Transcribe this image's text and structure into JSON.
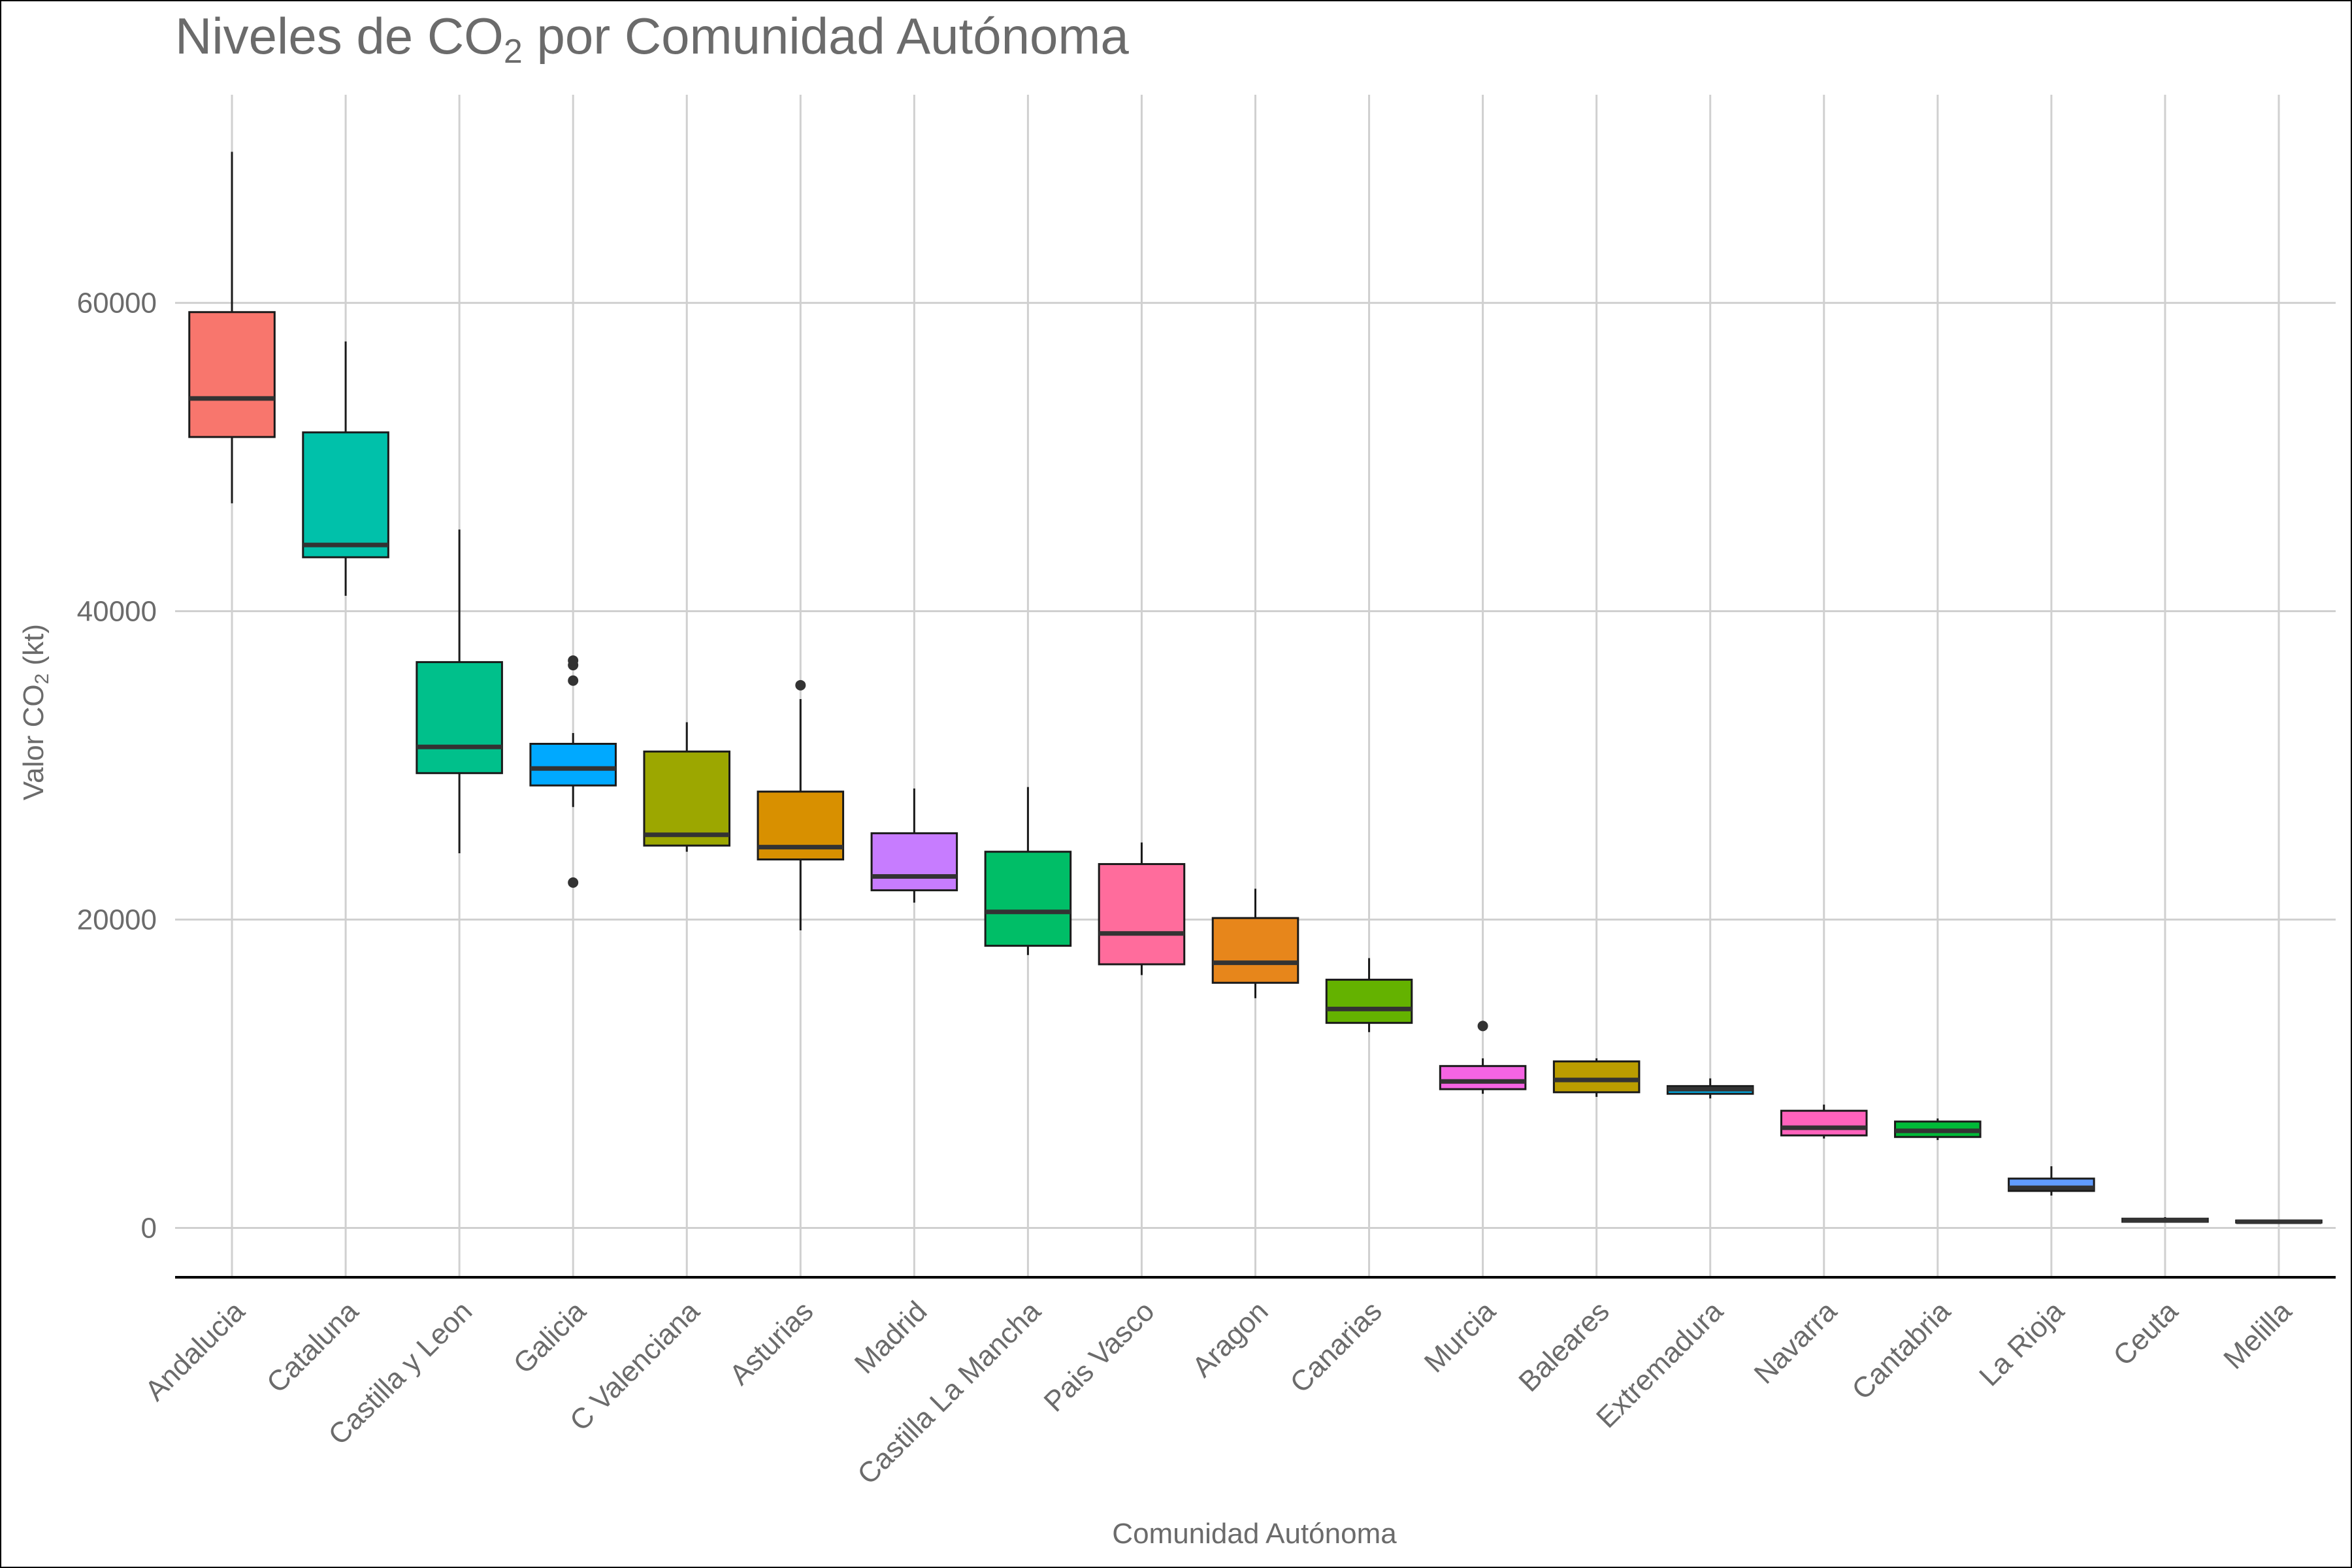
{
  "chart_data": {
    "type": "boxplot",
    "title": {
      "pre": "Niveles de  CO",
      "sub": "2",
      "post": " por Comunidad Autónoma"
    },
    "xlabel": "Comunidad Autónoma",
    "ylabel": {
      "pre": "Valor  CO",
      "sub": "2",
      "post": " (kt)"
    },
    "ylim": [
      -3200,
      73500
    ],
    "yticks": [
      0,
      20000,
      40000,
      60000
    ],
    "ytick_labels": [
      "0",
      "20000",
      "40000",
      "60000"
    ],
    "grid": true,
    "legend": "none",
    "categories": [
      {
        "name": "Andalucia",
        "color": "#F8766D",
        "min": 47000,
        "q1": 51300,
        "median": 53800,
        "q3": 59400,
        "max": 69800,
        "outliers": []
      },
      {
        "name": "Cataluna",
        "color": "#00C1AA",
        "min": 41000,
        "q1": 43500,
        "median": 44300,
        "q3": 51600,
        "max": 57500,
        "outliers": []
      },
      {
        "name": "Castilla y Leon",
        "color": "#00C08B",
        "min": 24300,
        "q1": 29500,
        "median": 31200,
        "q3": 36700,
        "max": 45300,
        "outliers": []
      },
      {
        "name": "Galicia",
        "color": "#00A9FF",
        "min": 27300,
        "q1": 28700,
        "median": 29800,
        "q3": 31400,
        "max": 32100,
        "outliers": [
          22400,
          35500,
          36500,
          36800
        ]
      },
      {
        "name": "C Valenciana",
        "color": "#9CA700",
        "min": 24400,
        "q1": 24800,
        "median": 25500,
        "q3": 30900,
        "max": 32800,
        "outliers": []
      },
      {
        "name": "Asturias",
        "color": "#D89000",
        "min": 19300,
        "q1": 23900,
        "median": 24700,
        "q3": 28300,
        "max": 34300,
        "outliers": [
          35200
        ]
      },
      {
        "name": "Madrid",
        "color": "#C77CFF",
        "min": 21100,
        "q1": 21900,
        "median": 22800,
        "q3": 25600,
        "max": 28500,
        "outliers": []
      },
      {
        "name": "Castilla La Mancha",
        "color": "#00BE67",
        "min": 17700,
        "q1": 18300,
        "median": 20500,
        "q3": 24400,
        "max": 28600,
        "outliers": []
      },
      {
        "name": "Pais Vasco",
        "color": "#FF6C9C",
        "min": 16400,
        "q1": 17100,
        "median": 19100,
        "q3": 23600,
        "max": 25000,
        "outliers": []
      },
      {
        "name": "Aragon",
        "color": "#E7861B",
        "min": 14900,
        "q1": 15900,
        "median": 17200,
        "q3": 20100,
        "max": 22000,
        "outliers": []
      },
      {
        "name": "Canarias",
        "color": "#64B200",
        "min": 12700,
        "q1": 13300,
        "median": 14200,
        "q3": 16100,
        "max": 17500,
        "outliers": []
      },
      {
        "name": "Murcia",
        "color": "#F564E3",
        "min": 8700,
        "q1": 9000,
        "median": 9500,
        "q3": 10500,
        "max": 11000,
        "outliers": [
          13100
        ]
      },
      {
        "name": "Baleares",
        "color": "#BB9D00",
        "min": 8500,
        "q1": 8800,
        "median": 9600,
        "q3": 10800,
        "max": 11000,
        "outliers": []
      },
      {
        "name": "Extremadura",
        "color": "#00B4F0",
        "min": 8400,
        "q1": 8700,
        "median": 9000,
        "q3": 9200,
        "max": 9700,
        "outliers": []
      },
      {
        "name": "Navarra",
        "color": "#FF62BC",
        "min": 5800,
        "q1": 6000,
        "median": 6500,
        "q3": 7600,
        "max": 8000,
        "outliers": []
      },
      {
        "name": "Cantabria",
        "color": "#00BA38",
        "min": 5700,
        "q1": 5900,
        "median": 6300,
        "q3": 6900,
        "max": 7100,
        "outliers": []
      },
      {
        "name": "La Rioja",
        "color": "#619CFF",
        "min": 2100,
        "q1": 2400,
        "median": 2600,
        "q3": 3200,
        "max": 4000,
        "outliers": []
      },
      {
        "name": "Ceuta",
        "color": "#00BFC4",
        "min": 350,
        "q1": 400,
        "median": 500,
        "q3": 600,
        "max": 700,
        "outliers": []
      },
      {
        "name": "Melilla",
        "color": "#A3A500",
        "min": 300,
        "q1": 350,
        "median": 400,
        "q3": 480,
        "max": 520,
        "outliers": []
      }
    ]
  }
}
